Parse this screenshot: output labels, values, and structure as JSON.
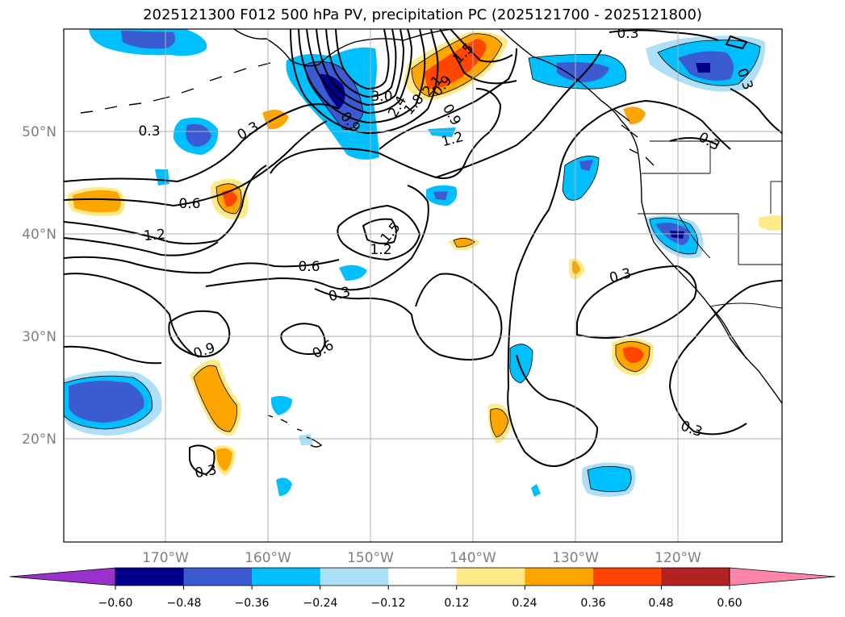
{
  "title": "2025121300 F012 500 hPa PV, precipitation PC (2025121700 - 2025121800)",
  "map": {
    "latitude_labels": [
      "50°N",
      "40°N",
      "30°N",
      "20°N"
    ],
    "longitude_labels": [
      "170°W",
      "160°W",
      "150°W",
      "140°W",
      "130°W",
      "120°W"
    ],
    "extent": {
      "lon_min": -180,
      "lon_max": -110,
      "lat_min": 10,
      "lat_max": 60
    }
  },
  "contour_labels": [
    "0.3",
    "0.3",
    "0.3",
    "0.3",
    "0.3",
    "0.3",
    "0.3",
    "0.3",
    "0.3",
    "0.6",
    "0.6",
    "0.6",
    "0.9",
    "0.9",
    "0.9",
    "1.2",
    "1.2",
    "1.2",
    "1.5",
    "1.5",
    "3.0",
    "1.8",
    "2.1",
    "2.4",
    "0.9"
  ],
  "colorbar": {
    "ticks": [
      "−0.60",
      "−0.48",
      "−0.36",
      "−0.24",
      "−0.12",
      "0.12",
      "0.24",
      "0.36",
      "0.48",
      "0.60"
    ],
    "colors": [
      "#9932CC",
      "#00008B",
      "#3A5BD1",
      "#00BFFF",
      "#ADDFF8",
      "#FFFFFF",
      "#FFEA8A",
      "#FFA500",
      "#FF4500",
      "#B22222",
      "#FF85A8"
    ]
  }
}
